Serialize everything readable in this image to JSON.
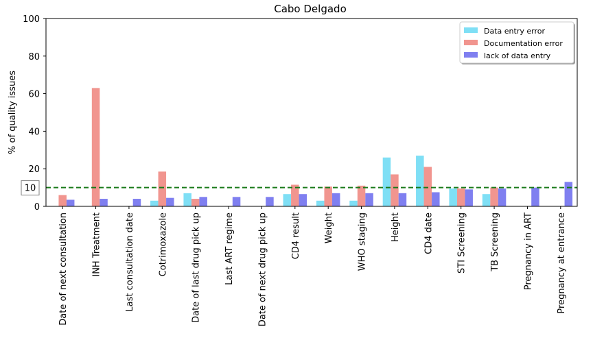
{
  "chart_data": {
    "type": "bar",
    "title": "Cabo Delgado",
    "xlabel": "",
    "ylabel": "% of quality issues",
    "ylim": [
      0,
      100
    ],
    "yticks": [
      0,
      20,
      40,
      60,
      80,
      100
    ],
    "grid": false,
    "legend_position": "top-right",
    "categories": [
      "Date of next consultation",
      "INH Treatment",
      "Last consultation date",
      "Cotrimoxazole",
      "Date of last drug pick up",
      "Last ART regime",
      "Date of next drug pick up",
      "CD4 result",
      "Weight",
      "WHO staging",
      "Height",
      "CD4 date",
      "STI Screening",
      "TB Screening",
      "Pregnancy in ART",
      "Pregnancy at entrance"
    ],
    "series": [
      {
        "name": "Data entry error",
        "color": "#7fdff5",
        "values": [
          0,
          0,
          0,
          3,
          7,
          0,
          0,
          6.5,
          3,
          3,
          26,
          27,
          9.5,
          6.5,
          0,
          0
        ]
      },
      {
        "name": "Documentation error",
        "color": "#f1958f",
        "values": [
          6,
          63,
          0,
          18.5,
          4,
          0,
          0,
          11.5,
          10.5,
          11,
          17,
          21,
          9.5,
          10,
          0,
          0
        ]
      },
      {
        "name": "lack of data entry",
        "color": "#7f7ff0",
        "values": [
          3.5,
          4,
          4,
          4.5,
          5,
          5,
          5,
          6.5,
          7,
          7,
          7,
          7.5,
          9,
          9.5,
          10,
          13
        ]
      }
    ],
    "reference_line": {
      "value": 10,
      "label": "10",
      "color": "#1a7a1a",
      "style": "dashed"
    }
  }
}
